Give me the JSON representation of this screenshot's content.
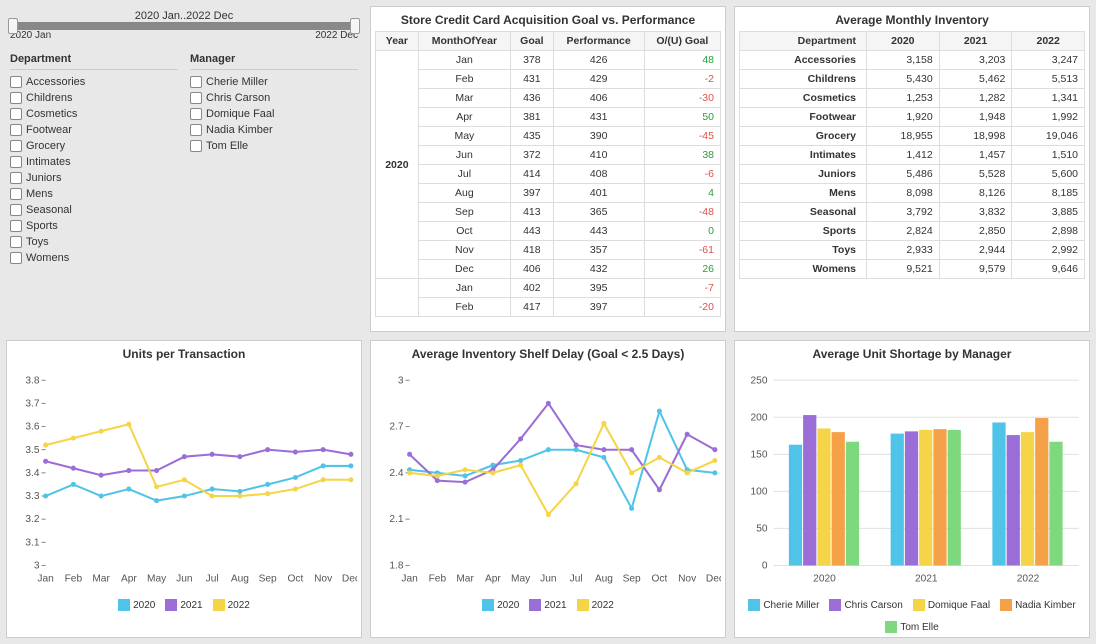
{
  "slider": {
    "center_label": "2020 Jan..2022 Dec",
    "start": "2020 Jan",
    "end": "2022 Dec"
  },
  "filters": {
    "department_title": "Department",
    "departments": [
      "Accessories",
      "Childrens",
      "Cosmetics",
      "Footwear",
      "Grocery",
      "Intimates",
      "Juniors",
      "Mens",
      "Seasonal",
      "Sports",
      "Toys",
      "Womens"
    ],
    "manager_title": "Manager",
    "managers": [
      "Cherie Miller",
      "Chris Carson",
      "Domique Faal",
      "Nadia Kimber",
      "Tom Elle"
    ]
  },
  "credit_table": {
    "title": "Store Credit Card Acquisition Goal vs. Performance",
    "headers": [
      "Year",
      "MonthOfYear",
      "Goal",
      "Performance",
      "O/(U) Goal"
    ],
    "year_label": "2020",
    "rows": [
      {
        "m": "Jan",
        "g": 378,
        "p": 426,
        "d": 48
      },
      {
        "m": "Feb",
        "g": 431,
        "p": 429,
        "d": -2
      },
      {
        "m": "Mar",
        "g": 436,
        "p": 406,
        "d": -30
      },
      {
        "m": "Apr",
        "g": 381,
        "p": 431,
        "d": 50
      },
      {
        "m": "May",
        "g": 435,
        "p": 390,
        "d": -45
      },
      {
        "m": "Jun",
        "g": 372,
        "p": 410,
        "d": 38
      },
      {
        "m": "Jul",
        "g": 414,
        "p": 408,
        "d": -6
      },
      {
        "m": "Aug",
        "g": 397,
        "p": 401,
        "d": 4
      },
      {
        "m": "Sep",
        "g": 413,
        "p": 365,
        "d": -48
      },
      {
        "m": "Oct",
        "g": 443,
        "p": 443,
        "d": 0
      },
      {
        "m": "Nov",
        "g": 418,
        "p": 357,
        "d": -61
      },
      {
        "m": "Dec",
        "g": 406,
        "p": 432,
        "d": 26
      },
      {
        "m": "Jan",
        "g": 402,
        "p": 395,
        "d": -7
      },
      {
        "m": "Feb",
        "g": 417,
        "p": 397,
        "d": -20
      }
    ]
  },
  "inventory_table": {
    "title": "Average Monthly Inventory",
    "headers": [
      "Department",
      "2020",
      "2021",
      "2022"
    ],
    "rows": [
      [
        "Accessories",
        "3,158",
        "3,203",
        "3,247"
      ],
      [
        "Childrens",
        "5,430",
        "5,462",
        "5,513"
      ],
      [
        "Cosmetics",
        "1,253",
        "1,282",
        "1,341"
      ],
      [
        "Footwear",
        "1,920",
        "1,948",
        "1,992"
      ],
      [
        "Grocery",
        "18,955",
        "18,998",
        "19,046"
      ],
      [
        "Intimates",
        "1,412",
        "1,457",
        "1,510"
      ],
      [
        "Juniors",
        "5,486",
        "5,528",
        "5,600"
      ],
      [
        "Mens",
        "8,098",
        "8,126",
        "8,185"
      ],
      [
        "Seasonal",
        "3,792",
        "3,832",
        "3,885"
      ],
      [
        "Sports",
        "2,824",
        "2,850",
        "2,898"
      ],
      [
        "Toys",
        "2,933",
        "2,944",
        "2,992"
      ],
      [
        "Womens",
        "9,521",
        "9,579",
        "9,646"
      ]
    ]
  },
  "colors": {
    "2020": "#4fc3e8",
    "2021": "#9b6dd7",
    "2022": "#f5d547",
    "managers": {
      "Cherie Miller": "#4fc3e8",
      "Chris Carson": "#9b6dd7",
      "Domique Faal": "#f5d547",
      "Nadia Kimber": "#f5a147",
      "Tom Elle": "#7ed97e"
    },
    "axis": "#888",
    "grid": "#e0e0e0"
  },
  "upt_chart": {
    "title": "Units per Transaction",
    "type": "line",
    "months": [
      "Jan",
      "Feb",
      "Mar",
      "Apr",
      "May",
      "Jun",
      "Jul",
      "Aug",
      "Sep",
      "Oct",
      "Nov",
      "Dec"
    ],
    "ylim": [
      3.0,
      3.8
    ],
    "ytick_step": 0.1,
    "series": {
      "2020": [
        3.3,
        3.35,
        3.3,
        3.33,
        3.28,
        3.3,
        3.33,
        3.32,
        3.35,
        3.38,
        3.43,
        3.43
      ],
      "2021": [
        3.45,
        3.42,
        3.39,
        3.41,
        3.41,
        3.47,
        3.48,
        3.47,
        3.5,
        3.49,
        3.5,
        3.48
      ],
      "2022": [
        3.52,
        3.55,
        3.58,
        3.61,
        3.34,
        3.37,
        3.3,
        3.3,
        3.31,
        3.33,
        3.37,
        3.37
      ]
    },
    "legend": [
      "2020",
      "2021",
      "2022"
    ]
  },
  "shelf_chart": {
    "title": "Average Inventory Shelf Delay (Goal < 2.5 Days)",
    "type": "line",
    "months": [
      "Jan",
      "Feb",
      "Mar",
      "Apr",
      "May",
      "Jun",
      "Jul",
      "Aug",
      "Sep",
      "Oct",
      "Nov",
      "Dec"
    ],
    "ylim": [
      1.8,
      3.0
    ],
    "ytick_step": 0.3,
    "series": {
      "2020": [
        2.42,
        2.4,
        2.38,
        2.45,
        2.48,
        2.55,
        2.55,
        2.5,
        2.17,
        2.8,
        2.42,
        2.4
      ],
      "2021": [
        2.52,
        2.35,
        2.34,
        2.42,
        2.62,
        2.85,
        2.58,
        2.55,
        2.55,
        2.29,
        2.65,
        2.55
      ],
      "2022": [
        2.4,
        2.38,
        2.42,
        2.4,
        2.45,
        2.13,
        2.33,
        2.72,
        2.4,
        2.5,
        2.4,
        2.48
      ]
    },
    "legend": [
      "2020",
      "2021",
      "2022"
    ]
  },
  "shortage_chart": {
    "title": "Average Unit Shortage by Manager",
    "type": "grouped-bar",
    "groups": [
      "2020",
      "2021",
      "2022"
    ],
    "ylim": [
      0,
      250
    ],
    "ytick_step": 50,
    "series": {
      "Cherie Miller": [
        163,
        178,
        193
      ],
      "Chris Carson": [
        203,
        181,
        176
      ],
      "Domique Faal": [
        185,
        183,
        180
      ],
      "Nadia Kimber": [
        180,
        184,
        199
      ],
      "Tom Elle": [
        167,
        183,
        167
      ]
    },
    "legend": [
      "Cherie Miller",
      "Chris Carson",
      "Domique Faal",
      "Nadia Kimber",
      "Tom Elle"
    ]
  }
}
